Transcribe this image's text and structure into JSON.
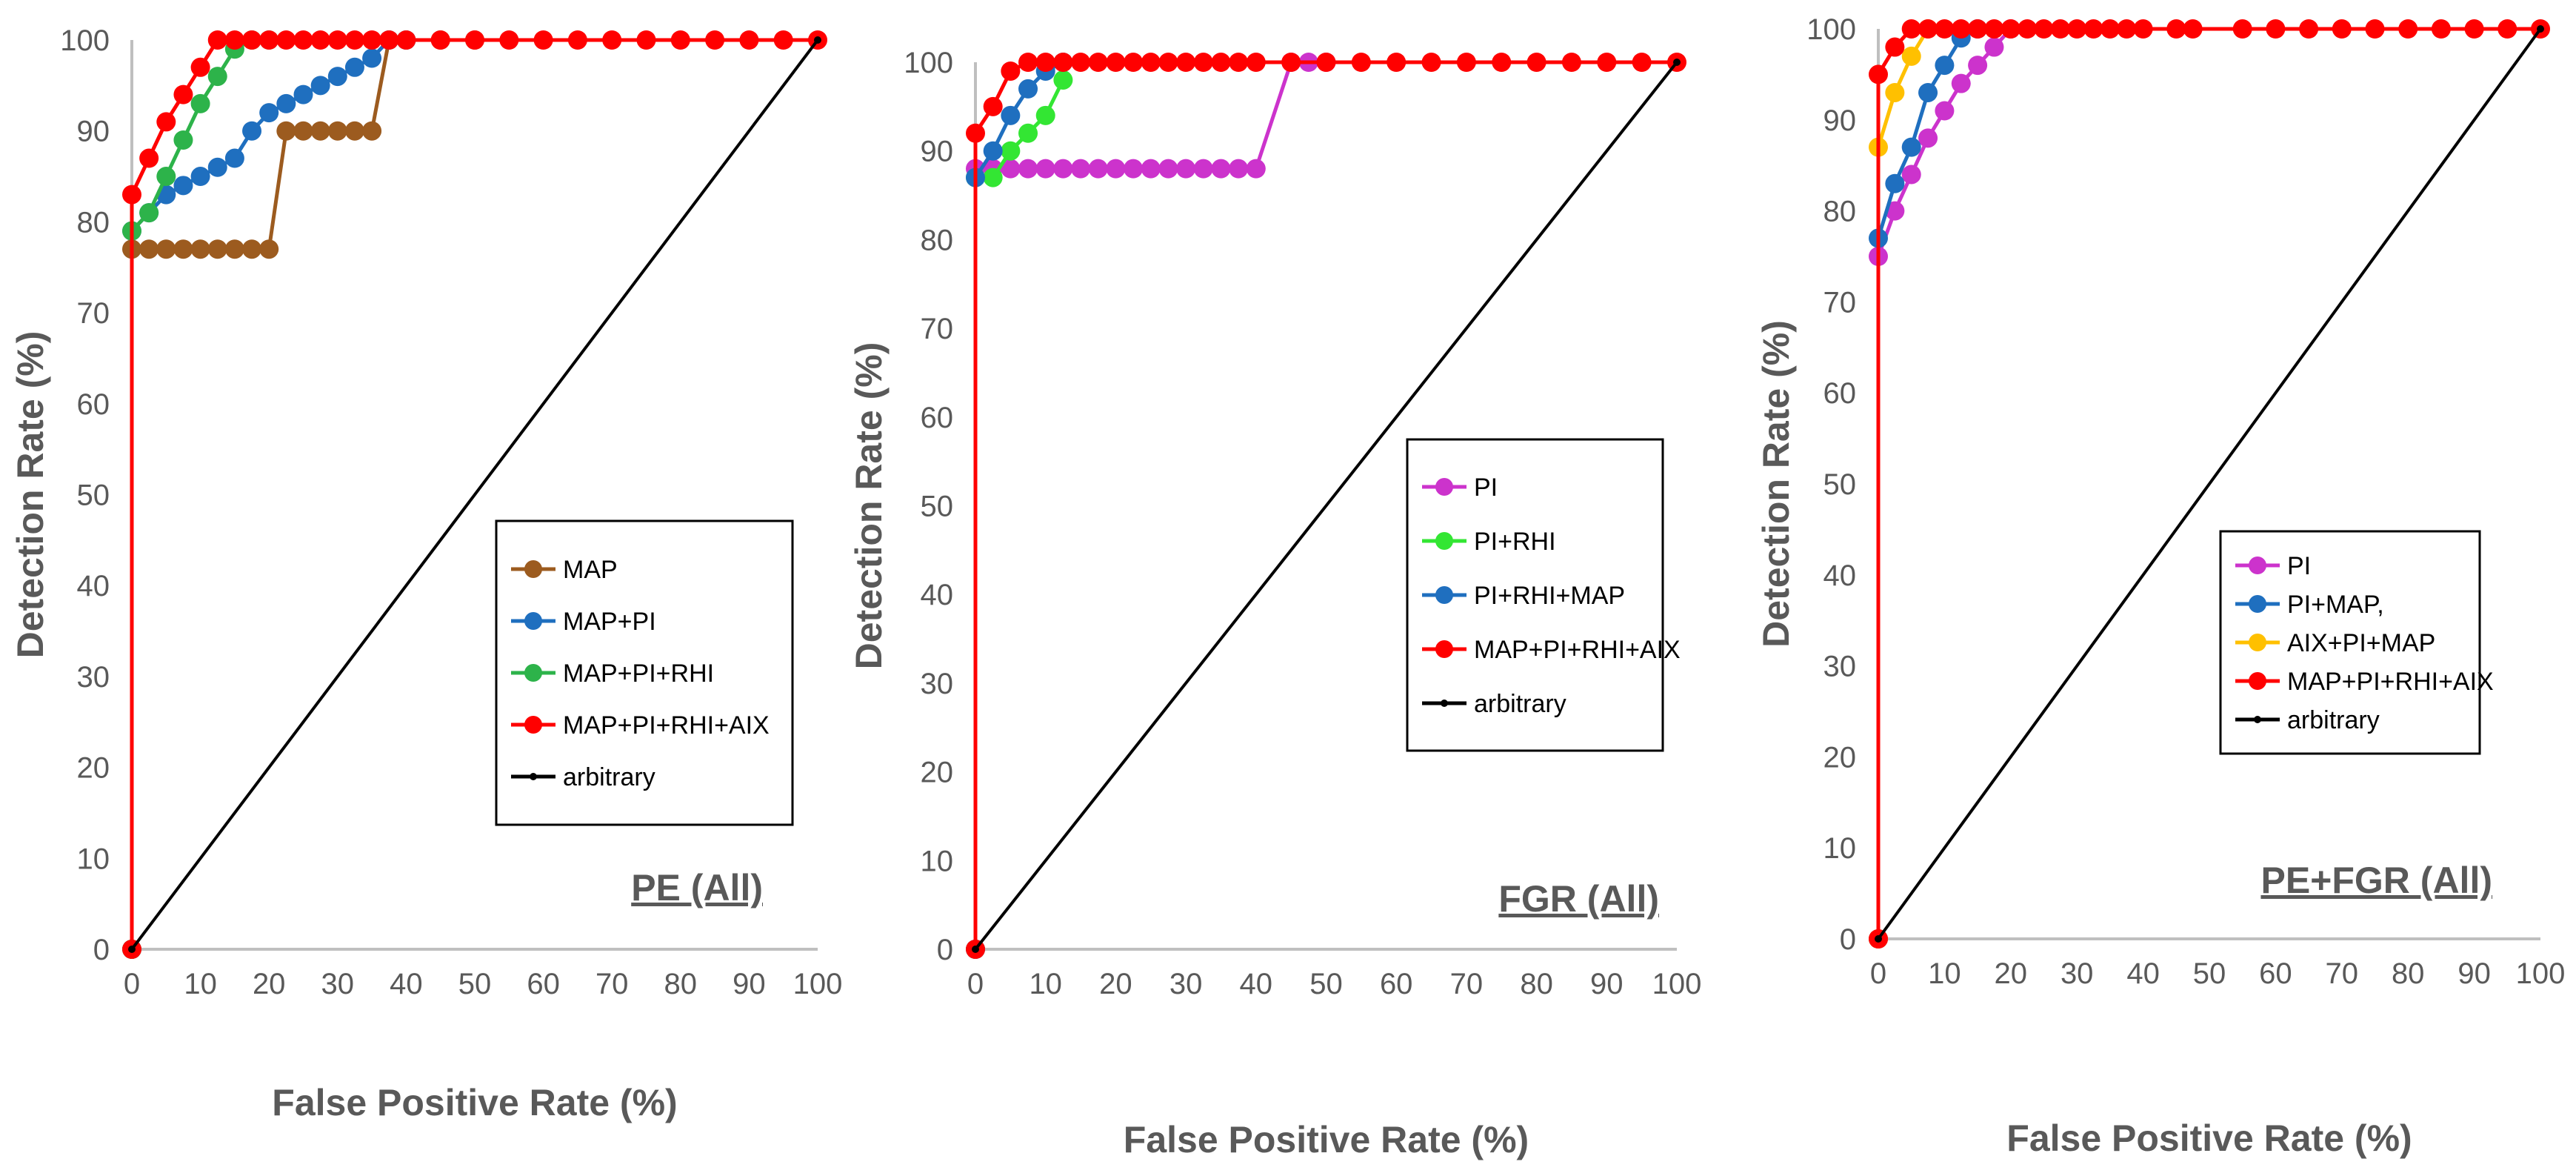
{
  "chart_data": [
    {
      "type": "line",
      "title": "PE (All)",
      "xlabel": "False Positive Rate (%)",
      "ylabel": "Detection Rate (%)",
      "xlim": [
        0,
        100
      ],
      "ylim": [
        0,
        100
      ],
      "xticks": [
        0,
        10,
        20,
        30,
        40,
        50,
        60,
        70,
        80,
        90,
        100
      ],
      "yticks": [
        0,
        10,
        20,
        30,
        40,
        50,
        60,
        70,
        80,
        90,
        100
      ],
      "xtick_labels": [
        "0",
        "10",
        "20",
        "30",
        "40",
        "50",
        "60",
        "70",
        "80",
        "90",
        "100"
      ],
      "ytick_labels": [
        "0",
        "10",
        "20",
        "30",
        "40",
        "50",
        "60",
        "70",
        "80",
        "90",
        "100"
      ],
      "legend_position": "center-right",
      "series": [
        {
          "name": "MAP",
          "color": "#9c5b1f",
          "marker": true,
          "x": [
            0,
            0,
            2.5,
            5,
            7.5,
            10,
            12.5,
            15,
            17.5,
            20,
            22.5,
            25,
            27.5,
            30,
            32.5,
            35,
            37.5,
            40,
            45,
            50
          ],
          "y": [
            0,
            77,
            77,
            77,
            77,
            77,
            77,
            77,
            77,
            77,
            90,
            90,
            90,
            90,
            90,
            90,
            100,
            100,
            100,
            100
          ]
        },
        {
          "name": "MAP+PI",
          "color": "#1f6fbf",
          "marker": true,
          "x": [
            0,
            0,
            2.5,
            5,
            7.5,
            10,
            12.5,
            15,
            17.5,
            20,
            22.5,
            25,
            27.5,
            30,
            32.5,
            35,
            37.5,
            40
          ],
          "y": [
            0,
            79,
            81,
            83,
            84,
            85,
            86,
            87,
            90,
            92,
            93,
            94,
            95,
            96,
            97,
            98,
            100,
            100
          ]
        },
        {
          "name": "MAP+PI+RHI",
          "color": "#2db34a",
          "marker": true,
          "x": [
            0,
            0,
            2.5,
            5,
            7.5,
            10,
            12.5,
            15,
            17.5,
            20
          ],
          "y": [
            0,
            79,
            81,
            85,
            89,
            93,
            96,
            99,
            100,
            100
          ]
        },
        {
          "name": "MAP+PI+RHI+AIX",
          "color": "#ff0000",
          "marker": true,
          "x": [
            0,
            0,
            2.5,
            5,
            7.5,
            10,
            12.5,
            15,
            17.5,
            20,
            22.5,
            25,
            27.5,
            30,
            32.5,
            35,
            37.5,
            40,
            45,
            50,
            55,
            60,
            65,
            70,
            75,
            80,
            85,
            90,
            95,
            100
          ],
          "y": [
            0,
            83,
            87,
            91,
            94,
            97,
            100,
            100,
            100,
            100,
            100,
            100,
            100,
            100,
            100,
            100,
            100,
            100,
            100,
            100,
            100,
            100,
            100,
            100,
            100,
            100,
            100,
            100,
            100,
            100
          ]
        },
        {
          "name": "arbitrary",
          "color": "#000000",
          "marker": false,
          "x": [
            0,
            100
          ],
          "y": [
            0,
            100
          ]
        }
      ]
    },
    {
      "type": "line",
      "title": "FGR (All)",
      "xlabel": "False Positive Rate (%)",
      "ylabel": "Detection Rate (%)",
      "xlim": [
        0,
        100
      ],
      "ylim": [
        0,
        100
      ],
      "xticks": [
        0,
        10,
        20,
        30,
        40,
        50,
        60,
        70,
        80,
        90,
        100
      ],
      "yticks": [
        0,
        10,
        20,
        30,
        40,
        50,
        60,
        70,
        80,
        90,
        100
      ],
      "xtick_labels": [
        "0",
        "10",
        "20",
        "30",
        "40",
        "50",
        "60",
        "70",
        "80",
        "90",
        "100"
      ],
      "ytick_labels": [
        "0",
        "10",
        "20",
        "30",
        "40",
        "50",
        "60",
        "70",
        "80",
        "90",
        "100"
      ],
      "legend_position": "center-right",
      "series": [
        {
          "name": "PI",
          "color": "#cc33cc",
          "marker": true,
          "x": [
            0,
            0,
            2.5,
            5,
            7.5,
            10,
            12.5,
            15,
            17.5,
            20,
            22.5,
            25,
            27.5,
            30,
            32.5,
            35,
            37.5,
            40,
            45,
            47.5,
            50
          ],
          "y": [
            0,
            88,
            88,
            88,
            88,
            88,
            88,
            88,
            88,
            88,
            88,
            88,
            88,
            88,
            88,
            88,
            88,
            88,
            100,
            100,
            100
          ]
        },
        {
          "name": "PI+RHI",
          "color": "#33e633",
          "marker": true,
          "x": [
            0,
            0,
            2.5,
            5,
            7.5,
            10,
            12.5
          ],
          "y": [
            0,
            87,
            87,
            90,
            92,
            94,
            98
          ]
        },
        {
          "name": "PI+RHI+MAP",
          "color": "#1f6fbf",
          "marker": true,
          "x": [
            0,
            0,
            2.5,
            5,
            7.5,
            10,
            12.5
          ],
          "y": [
            0,
            87,
            90,
            94,
            97,
            99,
            100
          ]
        },
        {
          "name": "MAP+PI+RHI+AIX",
          "color": "#ff0000",
          "marker": true,
          "x": [
            0,
            0,
            2.5,
            5,
            7.5,
            10,
            12.5,
            15,
            17.5,
            20,
            22.5,
            25,
            27.5,
            30,
            32.5,
            35,
            37.5,
            40,
            45,
            50,
            55,
            60,
            65,
            70,
            75,
            80,
            85,
            90,
            95,
            100
          ],
          "y": [
            0,
            92,
            95,
            99,
            100,
            100,
            100,
            100,
            100,
            100,
            100,
            100,
            100,
            100,
            100,
            100,
            100,
            100,
            100,
            100,
            100,
            100,
            100,
            100,
            100,
            100,
            100,
            100,
            100,
            100
          ]
        },
        {
          "name": "arbitrary",
          "color": "#000000",
          "marker": false,
          "x": [
            0,
            100
          ],
          "y": [
            0,
            100
          ]
        }
      ]
    },
    {
      "type": "line",
      "title": "PE+FGR (All)",
      "xlabel": "False Positive Rate (%)",
      "ylabel": "Detection Rate (%)",
      "xlim": [
        0,
        100
      ],
      "ylim": [
        0,
        100
      ],
      "xticks": [
        0,
        10,
        20,
        30,
        40,
        50,
        60,
        70,
        80,
        90,
        100
      ],
      "yticks": [
        0,
        10,
        20,
        30,
        40,
        50,
        60,
        70,
        80,
        90,
        100
      ],
      "xtick_labels": [
        "0",
        "10",
        "20",
        "30",
        "40",
        "50",
        "60",
        "70",
        "80",
        "90",
        "100"
      ],
      "ytick_labels": [
        "0",
        "10",
        "20",
        "30",
        "40",
        "50",
        "60",
        "70",
        "80",
        "90",
        "100"
      ],
      "legend_position": "center-right",
      "series": [
        {
          "name": "PI",
          "color": "#cc33cc",
          "marker": true,
          "x": [
            0,
            0,
            2.5,
            5,
            7.5,
            10,
            12.5,
            15,
            17.5,
            20
          ],
          "y": [
            0,
            75,
            80,
            84,
            88,
            91,
            94,
            96,
            98,
            100
          ]
        },
        {
          "name": "PI+MAP,",
          "color": "#1f6fbf",
          "marker": true,
          "x": [
            0,
            0,
            2.5,
            5,
            7.5,
            10,
            12.5,
            15
          ],
          "y": [
            0,
            77,
            83,
            87,
            93,
            96,
            99,
            100
          ]
        },
        {
          "name": "AIX+PI+MAP",
          "color": "#ffc000",
          "marker": true,
          "x": [
            0,
            0,
            2.5,
            5,
            7.5
          ],
          "y": [
            0,
            87,
            93,
            97,
            100
          ]
        },
        {
          "name": "MAP+PI+RHI+AIX",
          "color": "#ff0000",
          "marker": true,
          "x": [
            0,
            0,
            2.5,
            5,
            7.5,
            10,
            12.5,
            15,
            17.5,
            20,
            22.5,
            25,
            27.5,
            30,
            32.5,
            35,
            37.5,
            40,
            45,
            47.5,
            55,
            60,
            65,
            70,
            75,
            80,
            85,
            90,
            95,
            100
          ],
          "y": [
            0,
            95,
            98,
            100,
            100,
            100,
            100,
            100,
            100,
            100,
            100,
            100,
            100,
            100,
            100,
            100,
            100,
            100,
            100,
            100,
            100,
            100,
            100,
            100,
            100,
            100,
            100,
            100,
            100,
            100
          ]
        },
        {
          "name": "arbitrary",
          "color": "#000000",
          "marker": false,
          "x": [
            0,
            100
          ],
          "y": [
            0,
            100
          ]
        }
      ]
    }
  ]
}
